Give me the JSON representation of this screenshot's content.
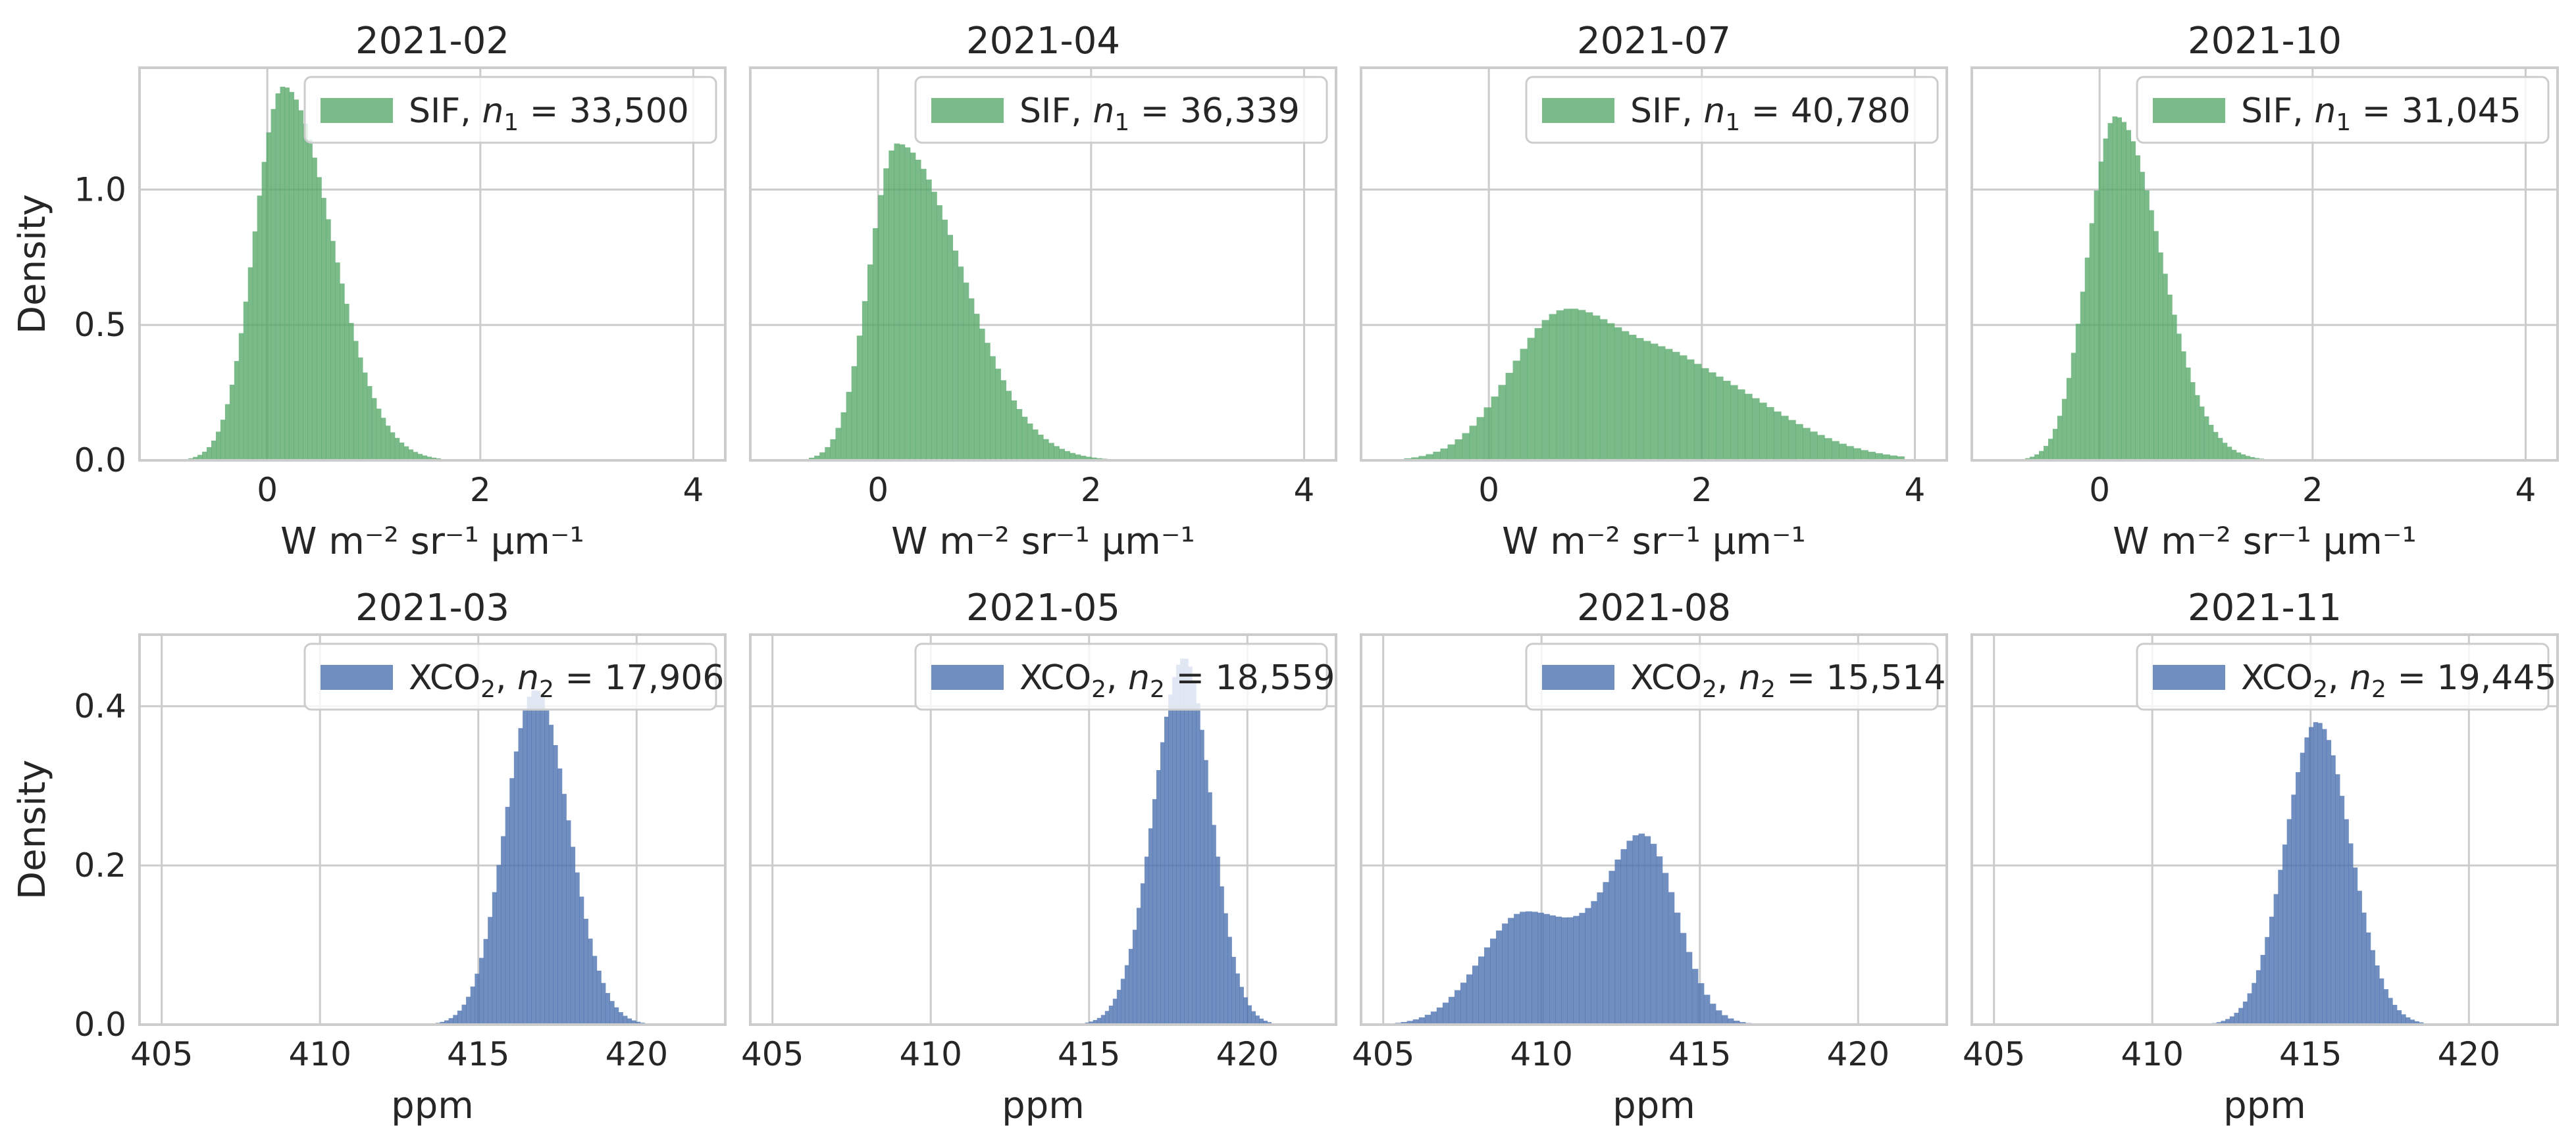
{
  "figure": {
    "row_labels": [
      "SIF",
      "XCO2"
    ]
  },
  "chart_data": [
    {
      "type": "bar",
      "panel": "histogram",
      "title": "2021-02",
      "xlabel": "W m⁻² sr⁻¹ μm⁻¹",
      "ylabel": "Density",
      "xlim": [
        -1.2,
        4.3
      ],
      "ylim": [
        0,
        1.45
      ],
      "xticks": [
        0,
        2,
        4
      ],
      "yticks": [
        0.0,
        0.5,
        1.0
      ],
      "xtick_labels": [
        "0",
        "2",
        "4"
      ],
      "ytick_labels": [
        "0.0",
        "0.5",
        "1.0"
      ],
      "legend": {
        "variable": "SIF",
        "n_symbol": "n",
        "n_sub": "1",
        "n_value": "33,500",
        "location": "top-right"
      },
      "color": "#55a868",
      "distribution": {
        "components": [
          {
            "mu": 0.15,
            "sl": 0.27,
            "sr": 0.45,
            "w": 1.0
          }
        ],
        "scale": 1.38,
        "range": [
          -1.0,
          2.1
        ]
      }
    },
    {
      "type": "bar",
      "panel": "histogram",
      "title": "2021-04",
      "xlabel": "W m⁻² sr⁻¹ μm⁻¹",
      "ylabel": "",
      "xlim": [
        -1.2,
        4.3
      ],
      "ylim": [
        0,
        1.45
      ],
      "xticks": [
        0,
        2,
        4
      ],
      "yticks": [
        0.0,
        0.5,
        1.0
      ],
      "xtick_labels": [
        "0",
        "2",
        "4"
      ],
      "ytick_labels": [
        "",
        "",
        ""
      ],
      "legend": {
        "variable": "SIF",
        "n_symbol": "n",
        "n_sub": "1",
        "n_value": "36,339",
        "location": "top-right"
      },
      "color": "#55a868",
      "distribution": {
        "components": [
          {
            "mu": 0.18,
            "sl": 0.26,
            "sr": 0.6,
            "w": 1.0
          }
        ],
        "scale": 1.17,
        "range": [
          -1.0,
          2.6
        ]
      }
    },
    {
      "type": "bar",
      "panel": "histogram",
      "title": "2021-07",
      "xlabel": "W m⁻² sr⁻¹ μm⁻¹",
      "ylabel": "",
      "xlim": [
        -1.2,
        4.3
      ],
      "ylim": [
        0,
        1.45
      ],
      "xticks": [
        0,
        2,
        4
      ],
      "yticks": [
        0.0,
        0.5,
        1.0
      ],
      "xtick_labels": [
        "0",
        "2",
        "4"
      ],
      "ytick_labels": [
        "",
        "",
        ""
      ],
      "legend": {
        "variable": "SIF",
        "n_symbol": "n",
        "n_sub": "1",
        "n_value": "40,780",
        "location": "top-right"
      },
      "color": "#55a868",
      "distribution": {
        "components": [
          {
            "mu": 0.7,
            "sl": 0.5,
            "sr": 0.6,
            "w": 1.0
          },
          {
            "mu": 1.9,
            "sl": 0.5,
            "sr": 0.8,
            "w": 0.55
          }
        ],
        "scale": 0.56,
        "range": [
          -1.0,
          3.9
        ]
      }
    },
    {
      "type": "bar",
      "panel": "histogram",
      "title": "2021-10",
      "xlabel": "W m⁻² sr⁻¹ μm⁻¹",
      "ylabel": "",
      "xlim": [
        -1.2,
        4.3
      ],
      "ylim": [
        0,
        1.45
      ],
      "xticks": [
        0,
        2,
        4
      ],
      "yticks": [
        0.0,
        0.5,
        1.0
      ],
      "xtick_labels": [
        "0",
        "2",
        "4"
      ],
      "ytick_labels": [
        "",
        "",
        ""
      ],
      "legend": {
        "variable": "SIF",
        "n_symbol": "n",
        "n_sub": "1",
        "n_value": "31,045",
        "location": "top-right"
      },
      "color": "#55a868",
      "distribution": {
        "components": [
          {
            "mu": 0.15,
            "sl": 0.26,
            "sr": 0.42,
            "w": 1.0
          }
        ],
        "scale": 1.27,
        "range": [
          -1.0,
          2.1
        ]
      }
    },
    {
      "type": "bar",
      "panel": "histogram",
      "title": "2021-03",
      "xlabel": "ppm",
      "ylabel": "Density",
      "xlim": [
        404.3,
        422.8
      ],
      "ylim": [
        0,
        0.49
      ],
      "xticks": [
        405,
        410,
        415,
        420
      ],
      "yticks": [
        0.0,
        0.2,
        0.4
      ],
      "xtick_labels": [
        "405",
        "410",
        "415",
        "420"
      ],
      "ytick_labels": [
        "0.0",
        "0.2",
        "0.4"
      ],
      "legend": {
        "variable": "XCO",
        "var_sub": "2",
        "n_symbol": "n",
        "n_sub": "2",
        "n_value": "17,906",
        "location": "top-right"
      },
      "color": "#4c72b0",
      "distribution": {
        "components": [
          {
            "mu": 416.8,
            "sl": 0.95,
            "sr": 1.05,
            "w": 1.0
          }
        ],
        "scale": 0.42,
        "range": [
          412.0,
          421.9
        ]
      }
    },
    {
      "type": "bar",
      "panel": "histogram",
      "title": "2021-05",
      "xlabel": "ppm",
      "ylabel": "",
      "xlim": [
        404.3,
        422.8
      ],
      "ylim": [
        0,
        0.49
      ],
      "xticks": [
        405,
        410,
        415,
        420
      ],
      "yticks": [
        0.0,
        0.2,
        0.4
      ],
      "xtick_labels": [
        "405",
        "410",
        "415",
        "420"
      ],
      "ytick_labels": [
        "",
        "",
        ""
      ],
      "legend": {
        "variable": "XCO",
        "var_sub": "2",
        "n_symbol": "n",
        "n_sub": "2",
        "n_value": "18,559",
        "location": "top-right"
      },
      "color": "#4c72b0",
      "distribution": {
        "components": [
          {
            "mu": 418.0,
            "sl": 0.95,
            "sr": 0.85,
            "w": 1.0
          }
        ],
        "scale": 0.46,
        "range": [
          412.5,
          421.5
        ]
      }
    },
    {
      "type": "bar",
      "panel": "histogram",
      "title": "2021-08",
      "xlabel": "ppm",
      "ylabel": "",
      "xlim": [
        404.3,
        422.8
      ],
      "ylim": [
        0,
        0.49
      ],
      "xticks": [
        405,
        410,
        415,
        420
      ],
      "yticks": [
        0.0,
        0.2,
        0.4
      ],
      "xtick_labels": [
        "405",
        "410",
        "415",
        "420"
      ],
      "ytick_labels": [
        "",
        "",
        ""
      ],
      "legend": {
        "variable": "XCO",
        "var_sub": "2",
        "n_symbol": "n",
        "n_sub": "2",
        "n_value": "15,514",
        "location": "top-right"
      },
      "color": "#4c72b0",
      "distribution": {
        "components": [
          {
            "mu": 409.5,
            "sl": 1.4,
            "sr": 2.2,
            "w": 0.11
          },
          {
            "mu": 413.3,
            "sl": 1.1,
            "sr": 1.0,
            "w": 0.16
          }
        ],
        "scale": 0.24,
        "range": [
          405.0,
          418.5
        ]
      }
    },
    {
      "type": "bar",
      "panel": "histogram",
      "title": "2021-11",
      "xlabel": "ppm",
      "ylabel": "",
      "xlim": [
        404.3,
        422.8
      ],
      "ylim": [
        0,
        0.49
      ],
      "xticks": [
        405,
        410,
        415,
        420
      ],
      "yticks": [
        0.0,
        0.2,
        0.4
      ],
      "xtick_labels": [
        "405",
        "410",
        "415",
        "420"
      ],
      "ytick_labels": [
        "",
        "",
        ""
      ],
      "legend": {
        "variable": "XCO",
        "var_sub": "2",
        "n_symbol": "n",
        "n_sub": "2",
        "n_value": "19,445",
        "location": "top-right"
      },
      "color": "#4c72b0",
      "distribution": {
        "components": [
          {
            "mu": 415.2,
            "sl": 1.0,
            "sr": 1.05,
            "w": 1.0
          }
        ],
        "scale": 0.38,
        "range": [
          410.5,
          420.5
        ]
      }
    }
  ]
}
